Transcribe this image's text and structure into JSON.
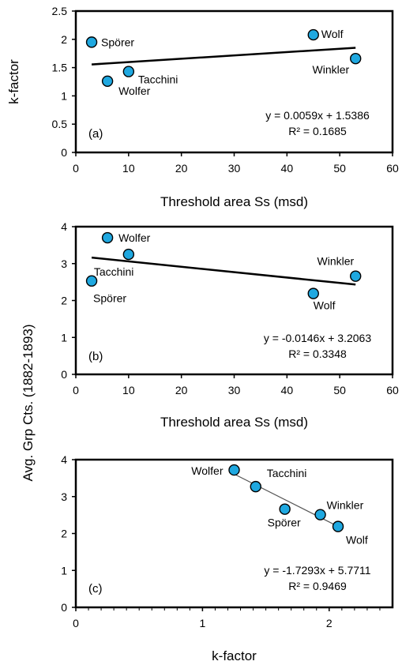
{
  "chart_data": [
    {
      "panel": "(a)",
      "type": "scatter",
      "xlabel": "Threshold area Ss (msd)",
      "ylabel": "k-factor",
      "xlim": [
        0,
        60
      ],
      "ylim": [
        0,
        2.5
      ],
      "x_ticks": [
        "0",
        "10",
        "20",
        "30",
        "40",
        "50",
        "60"
      ],
      "y_ticks": [
        "0",
        "0.5",
        "1",
        "1.5",
        "2",
        "2.5"
      ],
      "points": [
        {
          "label": "Spörer",
          "x": 3,
          "y": 1.95
        },
        {
          "label": "Wolfer",
          "x": 6,
          "y": 1.26
        },
        {
          "label": "Tacchini",
          "x": 10,
          "y": 1.43
        },
        {
          "label": "Wolf",
          "x": 45,
          "y": 2.08
        },
        {
          "label": "Winkler",
          "x": 53,
          "y": 1.66
        }
      ],
      "fit": {
        "slope": 0.0059,
        "intercept": 1.5386,
        "x_range": [
          3,
          53
        ]
      },
      "equation": "y = 0.0059x + 1.5386",
      "r2": "R² = 0.1685"
    },
    {
      "panel": "(b)",
      "type": "scatter",
      "xlabel": "Threshold area Ss (msd)",
      "ylabel": "Avg. Grp Cts. (1882-1893)",
      "xlim": [
        0,
        60
      ],
      "ylim": [
        0,
        4
      ],
      "x_ticks": [
        "0",
        "10",
        "20",
        "30",
        "40",
        "50",
        "60"
      ],
      "y_ticks": [
        "0",
        "1",
        "2",
        "3",
        "4"
      ],
      "points": [
        {
          "label": "Spörer",
          "x": 3,
          "y": 2.53
        },
        {
          "label": "Wolfer",
          "x": 6,
          "y": 3.7
        },
        {
          "label": "Tacchini",
          "x": 10,
          "y": 3.25
        },
        {
          "label": "Wolf",
          "x": 45,
          "y": 2.19
        },
        {
          "label": "Winkler",
          "x": 53,
          "y": 2.66
        }
      ],
      "fit": {
        "slope": -0.0146,
        "intercept": 3.2063,
        "x_range": [
          3,
          53
        ]
      },
      "equation": "y = -0.0146x + 3.2063",
      "r2": "R² = 0.3348"
    },
    {
      "panel": "(c)",
      "type": "scatter",
      "xlabel": "k-factor",
      "ylabel": "Avg. Grp Cts. (1882-1893)",
      "xlim": [
        0,
        2.5
      ],
      "ylim": [
        0,
        4
      ],
      "x_ticks": [
        "0",
        "1",
        "2"
      ],
      "y_ticks": [
        "0",
        "1",
        "2",
        "3",
        "4"
      ],
      "points": [
        {
          "label": "Wolfer",
          "x": 1.25,
          "y": 3.72
        },
        {
          "label": "Tacchini",
          "x": 1.42,
          "y": 3.27
        },
        {
          "label": "Spörer",
          "x": 1.65,
          "y": 2.66
        },
        {
          "label": "Winkler",
          "x": 1.93,
          "y": 2.51
        },
        {
          "label": "Wolf",
          "x": 2.07,
          "y": 2.19
        }
      ],
      "fit": {
        "slope": -1.7293,
        "intercept": 5.7711,
        "x_range": [
          1.25,
          2.07
        ]
      },
      "equation": "y = -1.7293x + 5.7711",
      "r2": "R² = 0.9469"
    }
  ],
  "shared_ylabel": "Avg. Grp Cts. (1882-1893)"
}
